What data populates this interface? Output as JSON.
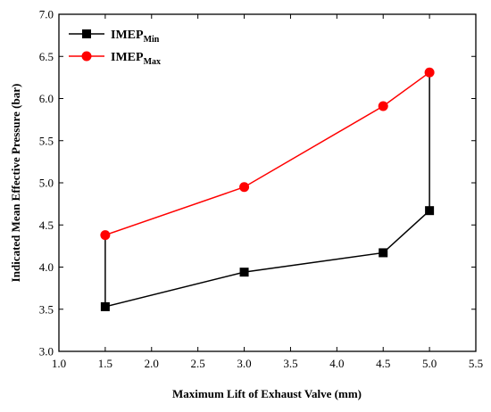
{
  "chart_data": {
    "type": "line",
    "xlabel": "Maximum Lift of Exhaust Valve (mm)",
    "ylabel": "Indicated Mean Effective Pressure (bar)",
    "xlim": [
      1.0,
      5.5
    ],
    "ylim": [
      3.0,
      7.0
    ],
    "xticks": [
      "1.0",
      "1.5",
      "2.0",
      "2.5",
      "3.0",
      "3.5",
      "4.0",
      "4.5",
      "5.0",
      "5.5"
    ],
    "yticks": [
      "3.0",
      "3.5",
      "4.0",
      "4.5",
      "5.0",
      "5.5",
      "6.0",
      "6.5",
      "7.0"
    ],
    "legend_position": "top-left",
    "series": [
      {
        "name_main": "IMEP",
        "name_sub": "Min",
        "color": "#000000",
        "marker": "square",
        "x": [
          1.5,
          3.0,
          4.5,
          5.0
        ],
        "y": [
          3.53,
          3.94,
          4.17,
          4.67
        ]
      },
      {
        "name_main": "IMEP",
        "name_sub": "Max",
        "color": "#ff0000",
        "marker": "circle",
        "x": [
          1.5,
          3.0,
          4.5,
          5.0
        ],
        "y": [
          4.38,
          4.95,
          5.91,
          6.31
        ]
      }
    ],
    "connectors": [
      {
        "x": 1.5,
        "y_from": 3.53,
        "y_to": 4.38,
        "color": "#000000"
      },
      {
        "x": 5.0,
        "y_from": 4.67,
        "y_to": 6.31,
        "color": "#000000"
      }
    ]
  }
}
